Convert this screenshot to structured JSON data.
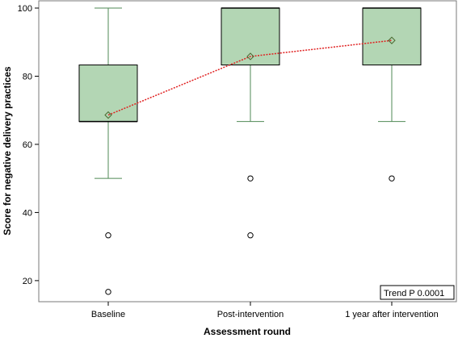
{
  "chart_data": {
    "type": "box",
    "xlabel": "Assessment round",
    "ylabel": "Score for negative delivery practices",
    "categories": [
      "Baseline",
      "Post-intervention",
      "1 year after intervention"
    ],
    "ylim": [
      15,
      100
    ],
    "yticks": [
      20,
      40,
      60,
      80,
      100
    ],
    "boxes": [
      {
        "whisker_low": 50,
        "q1": 66.7,
        "median": 66.7,
        "q3": 83.3,
        "whisker_high": 100,
        "mean": 68.6,
        "outliers": [
          33.3,
          16.7
        ]
      },
      {
        "whisker_low": 66.7,
        "q1": 83.3,
        "median": 100,
        "q3": 100,
        "whisker_high": 100,
        "mean": 85.8,
        "outliers": [
          50,
          33.3
        ]
      },
      {
        "whisker_low": 66.7,
        "q1": 83.3,
        "median": 100,
        "q3": 100,
        "whisker_high": 100,
        "mean": 90.5,
        "outliers": [
          50
        ]
      }
    ],
    "trend_annotation": "Trend P  0.0001",
    "colors": {
      "box_fill": "#b3d6b4",
      "box_stroke": "#000000",
      "whisker": "#4f8a55",
      "mean_line": "#e02020"
    }
  }
}
